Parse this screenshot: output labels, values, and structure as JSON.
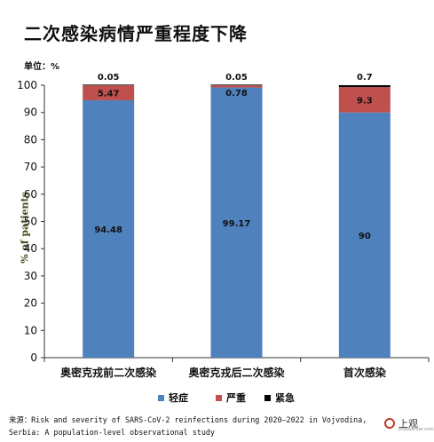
{
  "title": "二次感染病情严重程度下降",
  "unit_label": "单位：%",
  "source": {
    "prefix": "来源：",
    "line1": "Risk and severity of SARS-CoV-2 reinfections during 2020–2022 in Vojvodina,",
    "line2": "Serbia: A population-level observational study"
  },
  "logo": {
    "text": "上观",
    "sub": "shobserver.com"
  },
  "colors": {
    "mild": "#4f81bd",
    "severe": "#c0504d",
    "critical": "#000000"
  },
  "chart_data": {
    "type": "bar",
    "stacked": true,
    "categories": [
      "奥密克戎前二次感染",
      "奥密克戎后二次感染",
      "首次感染"
    ],
    "series": [
      {
        "name": "轻症",
        "values": [
          94.48,
          99.17,
          90
        ],
        "labels": [
          "94.48",
          "99.17",
          "90"
        ]
      },
      {
        "name": "严重",
        "values": [
          5.47,
          0.78,
          9.3
        ],
        "labels": [
          "5.47",
          "0.78",
          "9.3"
        ]
      },
      {
        "name": "紧急",
        "values": [
          0.05,
          0.05,
          0.7
        ],
        "labels": [
          "0.05",
          "0.05",
          "0.7"
        ]
      }
    ],
    "ylabel": "% of patients",
    "ylim": [
      0,
      100
    ],
    "yticks": [
      "0",
      "10",
      "20",
      "30",
      "40",
      "50",
      "60",
      "70",
      "80",
      "90",
      "100"
    ],
    "grid": false,
    "legend_position": "bottom"
  }
}
